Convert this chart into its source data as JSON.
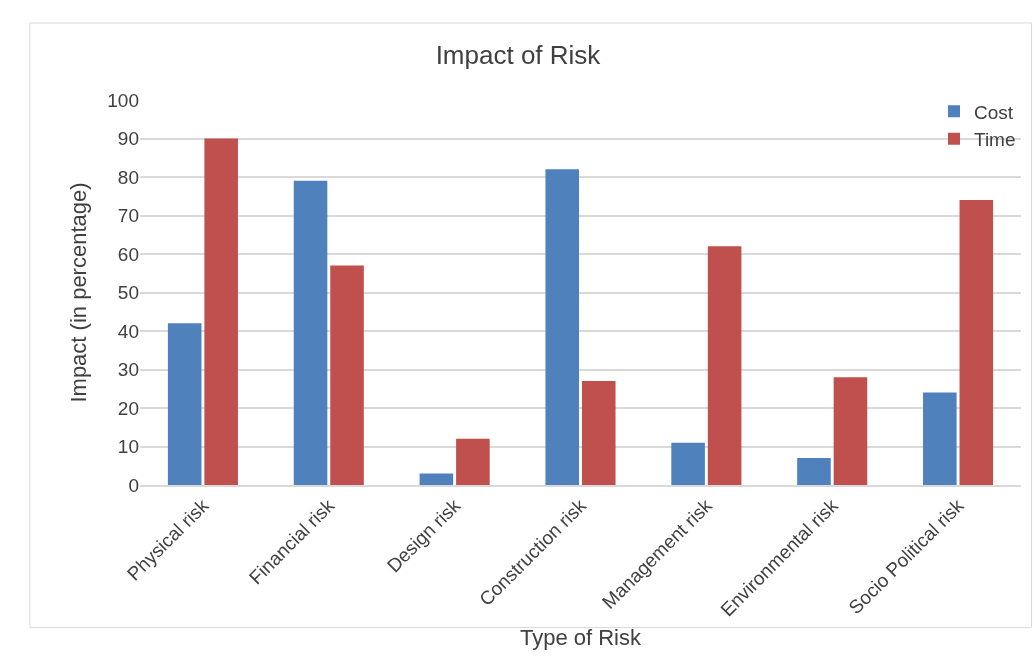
{
  "chart_data": {
    "type": "bar",
    "title": "Impact of Risk",
    "xlabel": "Type of Risk",
    "ylabel": "Impact (in percentage)",
    "categories": [
      "Physical risk",
      "Financial risk",
      "Design risk",
      "Construction risk",
      "Management risk",
      "Environmental risk",
      "Socio Political risk"
    ],
    "series": [
      {
        "name": "Cost",
        "color": "#4f81bd",
        "values": [
          42,
          79,
          3,
          82,
          11,
          7,
          24
        ]
      },
      {
        "name": "Time",
        "color": "#c0504d",
        "values": [
          90,
          57,
          12,
          27,
          62,
          28,
          74
        ]
      }
    ],
    "ylim": [
      0,
      100
    ],
    "yticks": [
      0,
      10,
      20,
      30,
      40,
      50,
      60,
      70,
      80,
      90,
      100
    ],
    "grid": "y",
    "legend": "top right"
  }
}
